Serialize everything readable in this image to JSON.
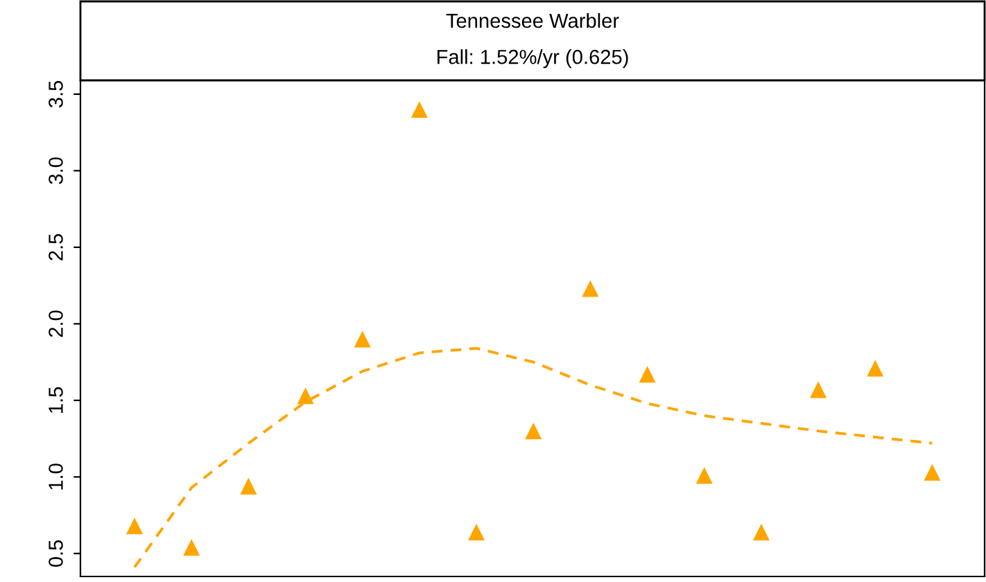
{
  "chart_data": {
    "type": "scatter",
    "title": "Tennessee Warbler",
    "subtitle": "Fall: 1.52%/yr (0.625)",
    "categories": [
      null,
      null,
      null,
      null,
      null,
      null,
      null,
      null,
      null,
      null,
      null,
      null,
      null,
      null,
      null
    ],
    "series": [
      {
        "color": "#ffa500",
        "marker": "triangle",
        "values": [
          0.68,
          0.54,
          0.94,
          1.53,
          1.9,
          3.4,
          0.64,
          1.3,
          2.23,
          1.67,
          1.01,
          0.64,
          1.57,
          1.71,
          1.03
        ]
      },
      {
        "type": "line",
        "color": "#ffa500",
        "marker": "none",
        "line_style": "dashed",
        "values": [
          0.41,
          0.93,
          1.22,
          1.49,
          1.69,
          1.81,
          1.84,
          1.75,
          1.6,
          1.48,
          1.4,
          1.35,
          1.3,
          1.26,
          1.22
        ]
      }
    ],
    "ylim": [
      0.35,
      3.59
    ],
    "yticks": [
      0.5,
      {
        "value": 1,
        "label": "1.0"
      },
      1.5,
      {
        "value": 2,
        "label": "2.0"
      },
      2.5,
      {
        "value": 3,
        "label": "3.0"
      },
      3.5
    ],
    "tick_labels": "y",
    "grid": false
  }
}
